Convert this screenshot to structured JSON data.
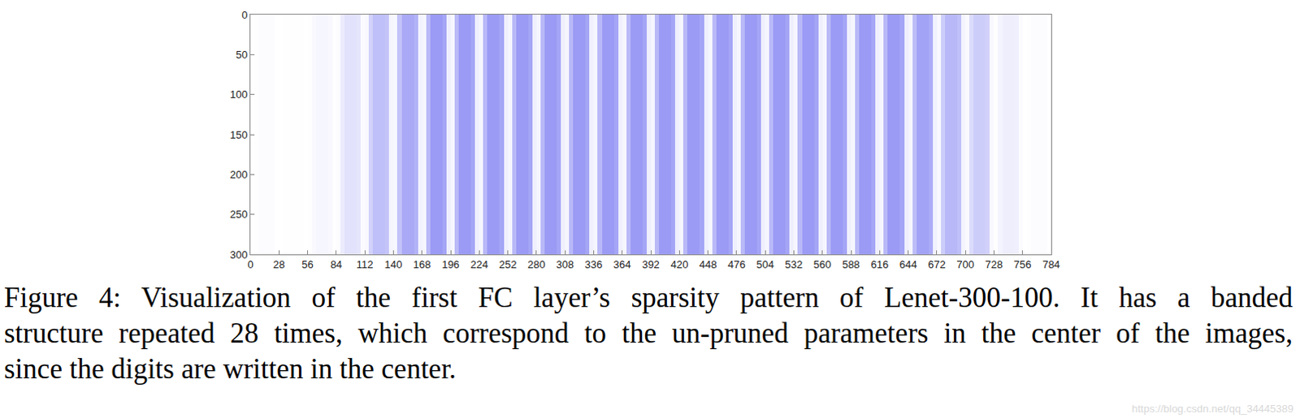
{
  "chart_data": {
    "type": "heatmap",
    "x_bins": [
      0,
      4,
      8,
      12,
      16,
      20,
      24,
      28,
      32,
      36,
      40,
      44,
      48,
      52,
      56,
      60,
      64,
      68,
      72,
      76,
      80,
      84,
      88,
      92,
      96,
      100,
      104,
      108,
      112,
      116,
      120,
      124,
      128,
      132,
      136,
      140,
      144,
      148,
      152,
      156,
      160,
      164,
      168,
      172,
      176,
      180,
      184,
      188,
      192,
      196,
      200,
      204,
      208,
      212,
      216,
      220,
      224,
      228,
      232,
      236,
      240,
      244,
      248,
      252,
      256,
      260,
      264,
      268,
      272,
      276,
      280,
      284,
      288,
      292,
      296,
      300,
      304,
      308,
      312,
      316,
      320,
      324,
      328,
      332,
      336,
      340,
      344,
      348,
      352,
      356,
      360,
      364,
      368,
      372,
      376,
      380,
      384,
      388,
      392,
      396,
      400,
      404,
      408,
      412,
      416,
      420,
      424,
      428,
      432,
      436,
      440,
      444,
      448,
      452,
      456,
      460,
      464,
      468,
      472,
      476,
      480,
      484,
      488,
      492,
      496,
      500,
      504,
      508,
      512,
      516,
      520,
      524,
      528,
      532,
      536,
      540,
      544,
      548,
      552,
      556,
      560,
      564,
      568,
      572,
      576,
      580,
      584,
      588,
      592,
      596,
      600,
      604,
      608,
      612,
      616,
      620,
      624,
      628,
      632,
      636,
      640,
      644,
      648,
      652,
      656,
      660,
      664,
      668,
      672,
      676,
      680,
      684,
      688,
      692,
      696,
      700,
      704,
      708,
      712,
      716,
      720,
      724,
      728,
      732,
      736,
      740,
      744,
      748,
      752,
      756,
      760,
      764,
      768,
      772,
      776,
      780,
      784
    ],
    "y_bins": [
      0,
      300
    ],
    "cells": [
      [
        0,
        0.01,
        0.02,
        0.02,
        0.02,
        0.02,
        0,
        0,
        0.01,
        0.01,
        0.01,
        0.01,
        0.01,
        0,
        0.01,
        0.04,
        0.06,
        0.06,
        0.06,
        0.05,
        0.01,
        0.02,
        0.14,
        0.2,
        0.2,
        0.2,
        0.18,
        0.03,
        0.05,
        0.32,
        0.45,
        0.45,
        0.45,
        0.41,
        0.07,
        0.06,
        0.42,
        0.6,
        0.6,
        0.6,
        0.54,
        0.09,
        0.07,
        0.49,
        0.7,
        0.7,
        0.7,
        0.63,
        0.11,
        0.07,
        0.49,
        0.7,
        0.7,
        0.7,
        0.63,
        0.11,
        0.07,
        0.49,
        0.7,
        0.7,
        0.7,
        0.63,
        0.11,
        0.07,
        0.49,
        0.7,
        0.7,
        0.7,
        0.63,
        0.11,
        0.07,
        0.49,
        0.7,
        0.7,
        0.7,
        0.63,
        0.11,
        0.07,
        0.49,
        0.7,
        0.7,
        0.7,
        0.63,
        0.11,
        0.07,
        0.49,
        0.7,
        0.7,
        0.7,
        0.63,
        0.11,
        0.07,
        0.49,
        0.7,
        0.7,
        0.7,
        0.63,
        0.11,
        0.07,
        0.49,
        0.7,
        0.7,
        0.7,
        0.63,
        0.11,
        0.07,
        0.49,
        0.7,
        0.7,
        0.7,
        0.63,
        0.11,
        0.07,
        0.49,
        0.7,
        0.7,
        0.7,
        0.63,
        0.11,
        0.07,
        0.49,
        0.7,
        0.7,
        0.7,
        0.63,
        0.11,
        0.07,
        0.49,
        0.7,
        0.7,
        0.7,
        0.63,
        0.11,
        0.07,
        0.49,
        0.7,
        0.7,
        0.7,
        0.63,
        0.11,
        0.07,
        0.49,
        0.7,
        0.7,
        0.7,
        0.63,
        0.11,
        0.07,
        0.49,
        0.7,
        0.7,
        0.7,
        0.63,
        0.11,
        0.07,
        0.49,
        0.7,
        0.7,
        0.7,
        0.63,
        0.11,
        0.07,
        0.46,
        0.65,
        0.65,
        0.65,
        0.59,
        0.1,
        0.05,
        0.35,
        0.5,
        0.5,
        0.5,
        0.45,
        0.08,
        0.04,
        0.25,
        0.35,
        0.35,
        0.35,
        0.32,
        0.05,
        0.01,
        0.08,
        0.12,
        0.12,
        0.12,
        0.11,
        0.02,
        0,
        0.01,
        0.02,
        0.02,
        0.02,
        0.02,
        0
      ]
    ],
    "color": "#9b9bf5",
    "color_range": [
      0,
      0.7
    ],
    "xlim": [
      0,
      784
    ],
    "xticks": [
      0,
      28,
      56,
      84,
      112,
      140,
      168,
      196,
      224,
      252,
      280,
      308,
      336,
      364,
      392,
      420,
      448,
      476,
      504,
      532,
      560,
      588,
      616,
      644,
      672,
      700,
      728,
      756,
      784
    ],
    "ylim": [
      300,
      0
    ],
    "yticks": [
      0,
      50,
      100,
      150,
      200,
      250,
      300
    ],
    "grid": false
  },
  "caption": [
    "Figure 4: Visualization of the first FC layer’s sparsity pattern of Lenet-300-100. It has a banded",
    "structure repeated 28 times, which correspond to the un-pruned parameters in the center of the images,",
    "since the digits are written in the center."
  ],
  "watermark": "https://blog.csdn.net/qq_34445389"
}
